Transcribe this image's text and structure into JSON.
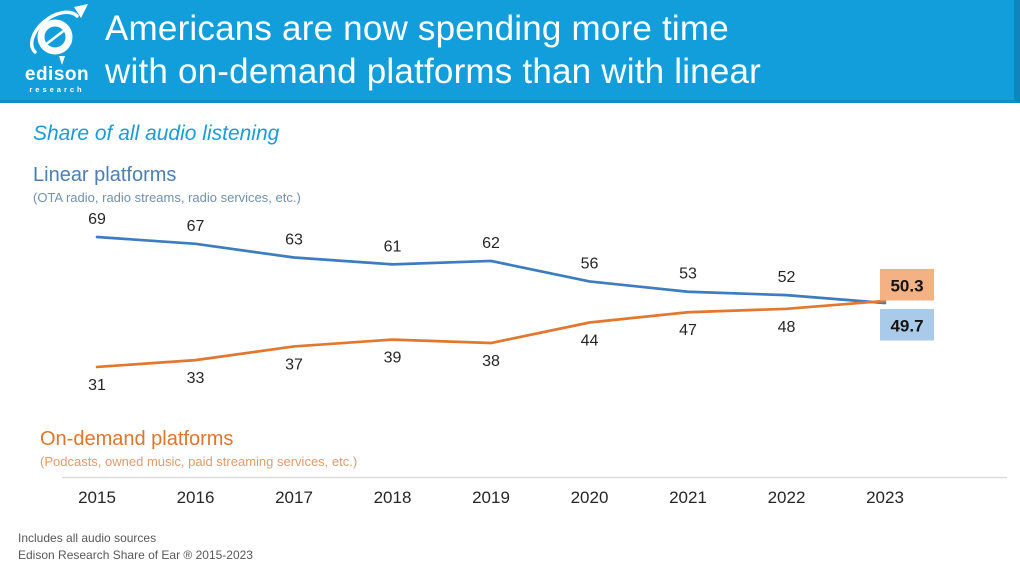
{
  "header": {
    "logo_text": "edison",
    "logo_subtext": "research",
    "title_line1": "Americans are now spending more time",
    "title_line2": "with on-demand platforms than with linear"
  },
  "subtitle": "Share of all audio listening",
  "series_labels": {
    "linear": {
      "title": "Linear platforms",
      "subtitle": "(OTA radio, radio streams, radio services, etc.)"
    },
    "on_demand": {
      "title": "On-demand platforms",
      "subtitle": "(Podcasts, owned music, paid streaming services, etc.)"
    }
  },
  "chart_data": {
    "type": "line",
    "title": "Share of all audio listening",
    "categories": [
      "2015",
      "2016",
      "2017",
      "2018",
      "2019",
      "2020",
      "2021",
      "2022",
      "2023"
    ],
    "series": [
      {
        "name": "Linear platforms",
        "color": "#3D7DBF",
        "values": [
          69,
          67,
          63,
          61,
          62,
          56,
          53,
          52,
          49.7
        ],
        "label_position": "above",
        "final_label": "49.7",
        "final_box_color": "#A9CBE9"
      },
      {
        "name": "On-demand platforms",
        "color": "#E2772F",
        "values": [
          31,
          33,
          37,
          39,
          38,
          44,
          47,
          48,
          50.3
        ],
        "label_position": "below",
        "final_label": "50.3",
        "final_box_color": "#F4B183"
      }
    ],
    "xlabel": "",
    "ylabel": "",
    "ylim": [
      25,
      75
    ],
    "y_axis_visible": false,
    "grid": false,
    "legend_position": "inline-labels",
    "axis_line_color": "#D9D9D9"
  },
  "colors": {
    "banner_cyan": "#119EDB",
    "subtitle_cyan": "#1B9CD8",
    "linear_blue": "#4C7EB2",
    "ondemand_orange": "#E0752D"
  },
  "footer": {
    "line1": "Includes all audio sources",
    "line2": "Edison Research Share of Ear ® 2015-2023"
  }
}
